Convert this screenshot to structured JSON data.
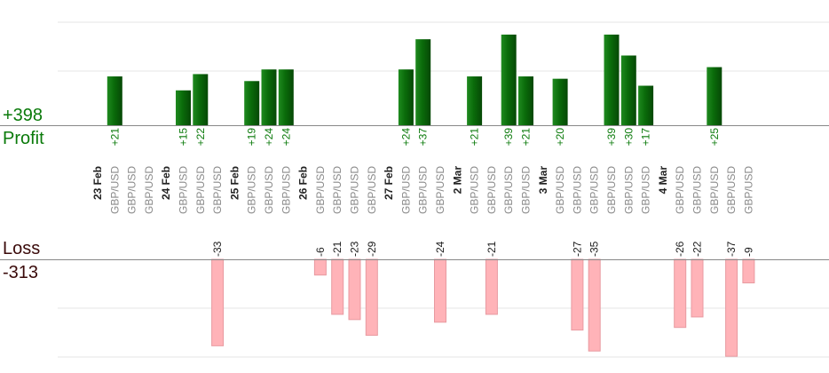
{
  "summary": {
    "profit_total": "+398",
    "profit_label": "Profit",
    "loss_label": "Loss",
    "loss_total": "-313"
  },
  "colors": {
    "profit_bar": "#0a6b0a",
    "profit_text": "#0a7a0a",
    "loss_bar": "#ffb3b8",
    "loss_bar_border": "#e89aa0",
    "loss_text": "#1a1a1a",
    "summary_loss_text": "#3a0a0a",
    "axis": "#888888",
    "grid": "#e6e6e6",
    "date_text": "#222222",
    "pair_text": "#8a8a8a"
  },
  "chart_data": {
    "type": "bar",
    "title": "",
    "profit_axis_max": 60,
    "loss_axis_max": 40,
    "grid": true,
    "columns": [
      {
        "date": "23 Feb",
        "pair": "",
        "value": null
      },
      {
        "date": "",
        "pair": "GBP/USD",
        "value": 21
      },
      {
        "date": "",
        "pair": "GBP/USD",
        "value": null
      },
      {
        "date": "",
        "pair": "GBP/USD",
        "value": null
      },
      {
        "date": "24 Feb",
        "pair": "",
        "value": null
      },
      {
        "date": "",
        "pair": "GBP/USD",
        "value": 15
      },
      {
        "date": "",
        "pair": "GBP/USD",
        "value": 22
      },
      {
        "date": "",
        "pair": "GBP/USD",
        "value": -33
      },
      {
        "date": "25 Feb",
        "pair": "",
        "value": null
      },
      {
        "date": "",
        "pair": "GBP/USD",
        "value": 19
      },
      {
        "date": "",
        "pair": "GBP/USD",
        "value": 24
      },
      {
        "date": "",
        "pair": "GBP/USD",
        "value": 24
      },
      {
        "date": "26 Feb",
        "pair": "",
        "value": null
      },
      {
        "date": "",
        "pair": "GBP/USD",
        "value": -6
      },
      {
        "date": "",
        "pair": "GBP/USD",
        "value": -21
      },
      {
        "date": "",
        "pair": "GBP/USD",
        "value": -23
      },
      {
        "date": "",
        "pair": "GBP/USD",
        "value": -29
      },
      {
        "date": "27 Feb",
        "pair": "",
        "value": null
      },
      {
        "date": "",
        "pair": "GBP/USD",
        "value": 24
      },
      {
        "date": "",
        "pair": "GBP/USD",
        "value": 37
      },
      {
        "date": "",
        "pair": "GBP/USD",
        "value": -24
      },
      {
        "date": "2 Mar",
        "pair": "",
        "value": null
      },
      {
        "date": "",
        "pair": "GBP/USD",
        "value": 21
      },
      {
        "date": "",
        "pair": "GBP/USD",
        "value": -21
      },
      {
        "date": "",
        "pair": "GBP/USD",
        "value": 39
      },
      {
        "date": "",
        "pair": "GBP/USD",
        "value": 21
      },
      {
        "date": "3 Mar",
        "pair": "",
        "value": null
      },
      {
        "date": "",
        "pair": "GBP/USD",
        "value": 20
      },
      {
        "date": "",
        "pair": "GBP/USD",
        "value": -27
      },
      {
        "date": "",
        "pair": "GBP/USD",
        "value": -35
      },
      {
        "date": "",
        "pair": "GBP/USD",
        "value": 39
      },
      {
        "date": "",
        "pair": "GBP/USD",
        "value": 30
      },
      {
        "date": "",
        "pair": "GBP/USD",
        "value": 17
      },
      {
        "date": "4 Mar",
        "pair": "",
        "value": null
      },
      {
        "date": "",
        "pair": "GBP/USD",
        "value": -26
      },
      {
        "date": "",
        "pair": "GBP/USD",
        "value": -22
      },
      {
        "date": "",
        "pair": "GBP/USD",
        "value": 25
      },
      {
        "date": "",
        "pair": "GBP/USD",
        "value": -37
      },
      {
        "date": "",
        "pair": "GBP/USD",
        "value": -9
      }
    ]
  }
}
